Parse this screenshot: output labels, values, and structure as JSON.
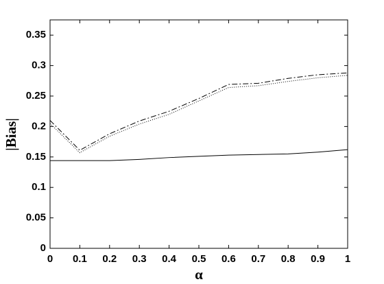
{
  "chart_data": {
    "type": "line",
    "xlabel": "α",
    "ylabel": "|Bias|",
    "x": [
      0,
      0.1,
      0.2,
      0.3,
      0.4,
      0.5,
      0.6,
      0.7,
      0.8,
      0.9,
      1
    ],
    "series": [
      {
        "color": "#000000",
        "dash": "none",
        "values": [
          0.144,
          0.144,
          0.144,
          0.146,
          0.149,
          0.151,
          0.153,
          0.154,
          0.155,
          0.158,
          0.162
        ]
      },
      {
        "color": "#000000",
        "dash": "8 3 2 3",
        "values": [
          0.21,
          0.161,
          0.188,
          0.209,
          0.225,
          0.246,
          0.269,
          0.271,
          0.279,
          0.285,
          0.288
        ]
      },
      {
        "color": "#000000",
        "dash": "1 2",
        "values": [
          0.205,
          0.157,
          0.184,
          0.204,
          0.22,
          0.242,
          0.264,
          0.267,
          0.274,
          0.28,
          0.284
        ]
      }
    ],
    "xlim": [
      0,
      1
    ],
    "ylim": [
      0,
      0.375
    ],
    "xticks": [
      0,
      0.1,
      0.2,
      0.3,
      0.4,
      0.5,
      0.6,
      0.7,
      0.8,
      0.9,
      1
    ],
    "yticks": [
      0,
      0.05,
      0.1,
      0.15,
      0.2,
      0.25,
      0.3,
      0.35
    ],
    "grid": false
  }
}
